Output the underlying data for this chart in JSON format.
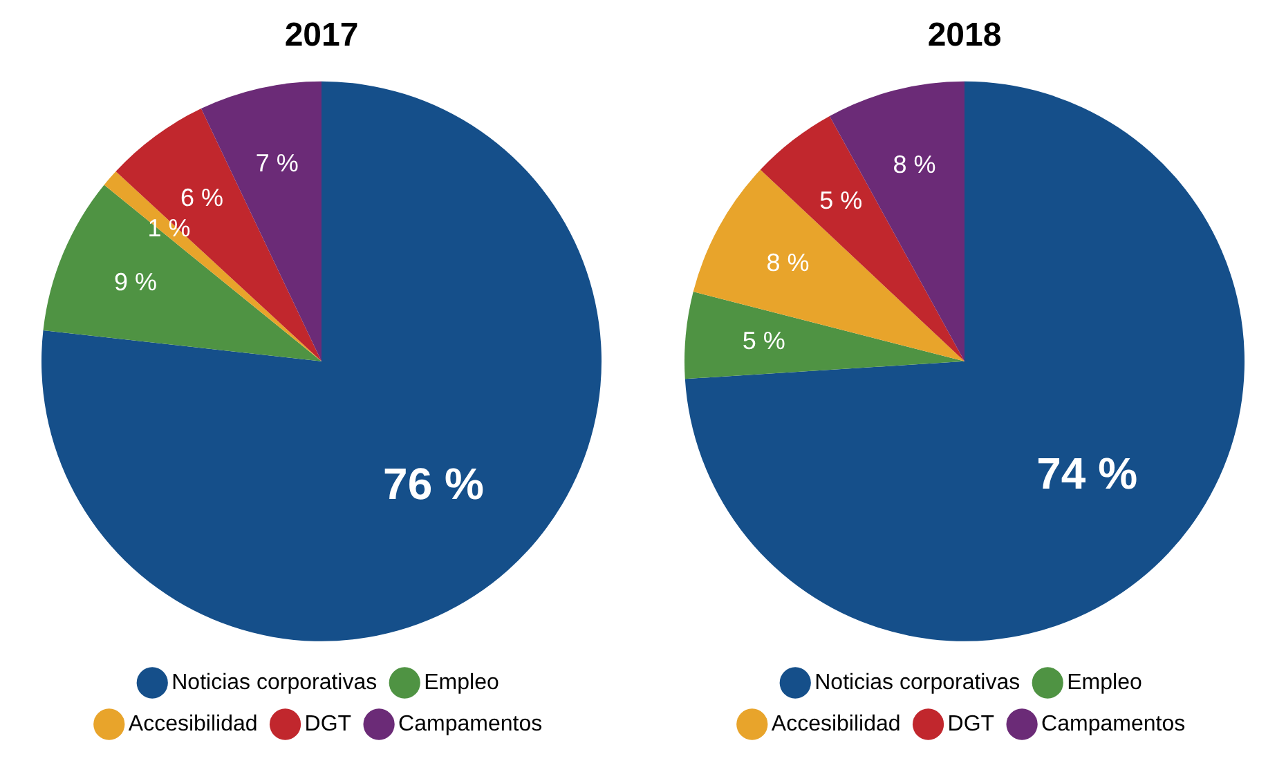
{
  "chart_data": [
    {
      "type": "pie",
      "title": "2017",
      "categories": [
        "Noticias corporativas",
        "Empleo",
        "Accesibilidad",
        "DGT",
        "Campamentos"
      ],
      "values": [
        76,
        9,
        1,
        6,
        7
      ],
      "colors": [
        "#154f8a",
        "#4f9343",
        "#e8a42b",
        "#c1272d",
        "#6b2b77"
      ],
      "value_labels": [
        "76 %",
        "9 %",
        "1 %",
        "6 %",
        "7 %"
      ],
      "legend": "bottom"
    },
    {
      "type": "pie",
      "title": "2018",
      "categories": [
        "Noticias corporativas",
        "Empleo",
        "Accesibilidad",
        "DGT",
        "Campamentos"
      ],
      "values": [
        74,
        5,
        8,
        5,
        8
      ],
      "colors": [
        "#154f8a",
        "#4f9343",
        "#e8a42b",
        "#c1272d",
        "#6b2b77"
      ],
      "value_labels": [
        "74 %",
        "5 %",
        "8 %",
        "5 %",
        "8 %"
      ],
      "legend": "bottom"
    }
  ]
}
